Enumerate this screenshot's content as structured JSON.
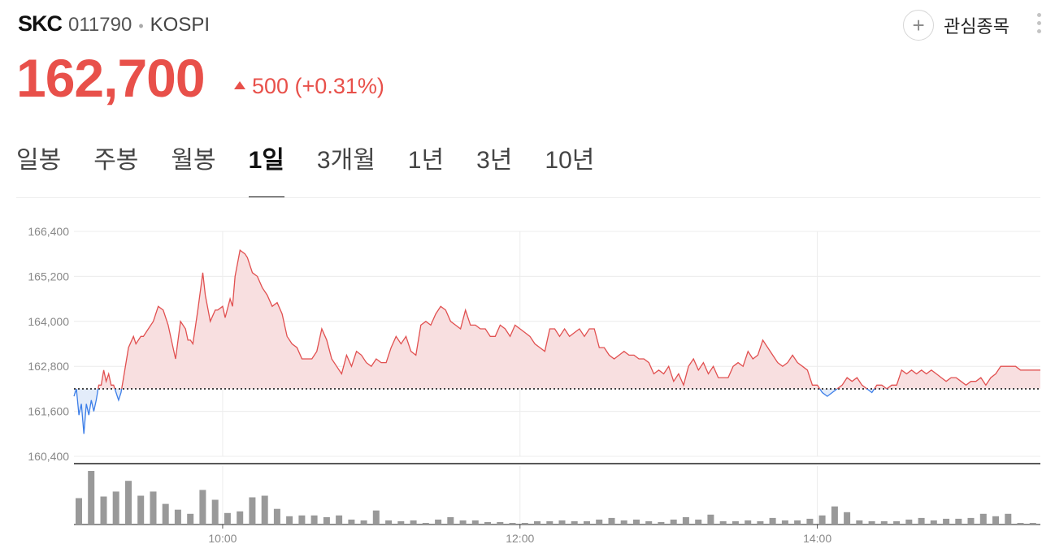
{
  "header": {
    "name": "SKC",
    "code": "011790",
    "separator": "•",
    "market": "KOSPI",
    "watch_label": "관심종목",
    "watch_icon": "plus-icon",
    "menu_icon": "more-vertical-icon"
  },
  "quote": {
    "price": "162,700",
    "change": "500 (+0.31%)",
    "direction": "up",
    "color_up": "#e8504a",
    "color_down": "#3a7ee6"
  },
  "tabs": [
    {
      "label": "일봉",
      "active": false
    },
    {
      "label": "주봉",
      "active": false
    },
    {
      "label": "월봉",
      "active": false
    },
    {
      "label": "1일",
      "active": true
    },
    {
      "label": "3개월",
      "active": false
    },
    {
      "label": "1년",
      "active": false
    },
    {
      "label": "3년",
      "active": false
    },
    {
      "label": "10년",
      "active": false
    }
  ],
  "chart_data": {
    "type": "area",
    "time_start": "09:00",
    "time_end": "15:30",
    "ylim": [
      160400,
      166400
    ],
    "y_ticks": [
      160400,
      161600,
      162800,
      164000,
      165200,
      166400
    ],
    "y_tick_labels": [
      "160,400",
      "161,600",
      "162,800",
      "164,000",
      "165,200",
      "166,400"
    ],
    "x_ticks": [
      "10:00",
      "12:00",
      "14:00"
    ],
    "previous_close": 162200,
    "grid": true,
    "price_points": [
      [
        "09:00",
        162000
      ],
      [
        "09:01",
        162200
      ],
      [
        "09:02",
        161500
      ],
      [
        "09:03",
        161800
      ],
      [
        "09:04",
        161000
      ],
      [
        "09:05",
        161800
      ],
      [
        "09:06",
        161500
      ],
      [
        "09:07",
        161900
      ],
      [
        "09:08",
        161600
      ],
      [
        "09:09",
        161900
      ],
      [
        "09:10",
        162300
      ],
      [
        "09:11",
        162300
      ],
      [
        "09:12",
        162700
      ],
      [
        "09:13",
        162400
      ],
      [
        "09:14",
        162600
      ],
      [
        "09:15",
        162300
      ],
      [
        "09:16",
        162300
      ],
      [
        "09:17",
        162100
      ],
      [
        "09:18",
        161900
      ],
      [
        "09:19",
        162100
      ],
      [
        "09:20",
        162500
      ],
      [
        "09:22",
        163300
      ],
      [
        "09:24",
        163600
      ],
      [
        "09:25",
        163400
      ],
      [
        "09:27",
        163600
      ],
      [
        "09:28",
        163600
      ],
      [
        "09:30",
        163800
      ],
      [
        "09:32",
        164000
      ],
      [
        "09:34",
        164400
      ],
      [
        "09:36",
        164300
      ],
      [
        "09:38",
        163900
      ],
      [
        "09:40",
        163300
      ],
      [
        "09:41",
        163000
      ],
      [
        "09:43",
        164000
      ],
      [
        "09:45",
        163800
      ],
      [
        "09:46",
        163500
      ],
      [
        "09:47",
        163500
      ],
      [
        "09:48",
        163400
      ],
      [
        "09:50",
        164300
      ],
      [
        "09:52",
        165300
      ],
      [
        "09:53",
        164700
      ],
      [
        "09:55",
        164000
      ],
      [
        "09:57",
        164300
      ],
      [
        "09:58",
        164300
      ],
      [
        "10:00",
        164400
      ],
      [
        "10:01",
        164100
      ],
      [
        "10:03",
        164600
      ],
      [
        "10:04",
        164400
      ],
      [
        "10:05",
        165200
      ],
      [
        "10:07",
        165900
      ],
      [
        "10:09",
        165800
      ],
      [
        "10:10",
        165700
      ],
      [
        "10:12",
        165300
      ],
      [
        "10:14",
        165200
      ],
      [
        "10:16",
        164900
      ],
      [
        "10:18",
        164700
      ],
      [
        "10:20",
        164400
      ],
      [
        "10:22",
        164500
      ],
      [
        "10:24",
        164200
      ],
      [
        "10:26",
        163600
      ],
      [
        "10:28",
        163400
      ],
      [
        "10:30",
        163300
      ],
      [
        "10:32",
        163000
      ],
      [
        "10:34",
        163000
      ],
      [
        "10:36",
        163000
      ],
      [
        "10:38",
        163200
      ],
      [
        "10:40",
        163800
      ],
      [
        "10:42",
        163500
      ],
      [
        "10:44",
        163000
      ],
      [
        "10:46",
        162800
      ],
      [
        "10:48",
        162600
      ],
      [
        "10:50",
        163100
      ],
      [
        "10:52",
        162800
      ],
      [
        "10:54",
        163200
      ],
      [
        "10:56",
        163100
      ],
      [
        "10:58",
        162900
      ],
      [
        "11:00",
        162800
      ],
      [
        "11:02",
        163000
      ],
      [
        "11:04",
        162900
      ],
      [
        "11:06",
        162900
      ],
      [
        "11:08",
        163300
      ],
      [
        "11:10",
        163600
      ],
      [
        "11:12",
        163400
      ],
      [
        "11:14",
        163600
      ],
      [
        "11:16",
        163200
      ],
      [
        "11:18",
        163100
      ],
      [
        "11:20",
        163900
      ],
      [
        "11:22",
        164000
      ],
      [
        "11:24",
        163900
      ],
      [
        "11:26",
        164200
      ],
      [
        "11:28",
        164400
      ],
      [
        "11:30",
        164300
      ],
      [
        "11:32",
        164000
      ],
      [
        "11:34",
        163900
      ],
      [
        "11:36",
        163800
      ],
      [
        "11:38",
        164300
      ],
      [
        "11:40",
        163900
      ],
      [
        "11:42",
        163900
      ],
      [
        "11:44",
        163800
      ],
      [
        "11:46",
        163800
      ],
      [
        "11:48",
        163600
      ],
      [
        "11:50",
        163600
      ],
      [
        "11:52",
        163900
      ],
      [
        "11:54",
        163800
      ],
      [
        "11:56",
        163600
      ],
      [
        "11:58",
        163900
      ],
      [
        "12:00",
        163800
      ],
      [
        "12:02",
        163700
      ],
      [
        "12:04",
        163600
      ],
      [
        "12:06",
        163400
      ],
      [
        "12:08",
        163300
      ],
      [
        "12:10",
        163200
      ],
      [
        "12:12",
        163800
      ],
      [
        "12:14",
        163800
      ],
      [
        "12:16",
        163600
      ],
      [
        "12:18",
        163800
      ],
      [
        "12:20",
        163600
      ],
      [
        "12:22",
        163700
      ],
      [
        "12:24",
        163800
      ],
      [
        "12:26",
        163600
      ],
      [
        "12:28",
        163800
      ],
      [
        "12:30",
        163800
      ],
      [
        "12:32",
        163300
      ],
      [
        "12:34",
        163300
      ],
      [
        "12:36",
        163100
      ],
      [
        "12:38",
        163000
      ],
      [
        "12:40",
        163100
      ],
      [
        "12:42",
        163200
      ],
      [
        "12:44",
        163100
      ],
      [
        "12:46",
        163100
      ],
      [
        "12:48",
        163000
      ],
      [
        "12:50",
        163000
      ],
      [
        "12:52",
        162900
      ],
      [
        "12:54",
        162600
      ],
      [
        "12:56",
        162700
      ],
      [
        "12:58",
        162600
      ],
      [
        "13:00",
        162800
      ],
      [
        "13:02",
        162400
      ],
      [
        "13:04",
        162600
      ],
      [
        "13:06",
        162300
      ],
      [
        "13:08",
        162800
      ],
      [
        "13:10",
        163000
      ],
      [
        "13:12",
        162700
      ],
      [
        "13:14",
        162900
      ],
      [
        "13:16",
        162600
      ],
      [
        "13:18",
        162800
      ],
      [
        "13:20",
        162500
      ],
      [
        "13:22",
        162500
      ],
      [
        "13:24",
        162500
      ],
      [
        "13:26",
        162800
      ],
      [
        "13:28",
        162900
      ],
      [
        "13:30",
        162800
      ],
      [
        "13:32",
        163200
      ],
      [
        "13:34",
        163000
      ],
      [
        "13:36",
        163100
      ],
      [
        "13:38",
        163500
      ],
      [
        "13:40",
        163300
      ],
      [
        "13:42",
        163100
      ],
      [
        "13:44",
        162900
      ],
      [
        "13:46",
        162800
      ],
      [
        "13:48",
        162900
      ],
      [
        "13:50",
        163100
      ],
      [
        "13:52",
        162900
      ],
      [
        "13:54",
        162800
      ],
      [
        "13:56",
        162700
      ],
      [
        "13:58",
        162300
      ],
      [
        "14:00",
        162300
      ],
      [
        "14:02",
        162100
      ],
      [
        "14:04",
        162000
      ],
      [
        "14:06",
        162100
      ],
      [
        "14:08",
        162200
      ],
      [
        "14:10",
        162300
      ],
      [
        "14:12",
        162500
      ],
      [
        "14:14",
        162400
      ],
      [
        "14:16",
        162500
      ],
      [
        "14:18",
        162300
      ],
      [
        "14:20",
        162200
      ],
      [
        "14:22",
        162100
      ],
      [
        "14:24",
        162300
      ],
      [
        "14:26",
        162300
      ],
      [
        "14:28",
        162200
      ],
      [
        "14:30",
        162300
      ],
      [
        "14:32",
        162300
      ],
      [
        "14:34",
        162700
      ],
      [
        "14:36",
        162600
      ],
      [
        "14:38",
        162700
      ],
      [
        "14:40",
        162600
      ],
      [
        "14:42",
        162700
      ],
      [
        "14:44",
        162600
      ],
      [
        "14:46",
        162700
      ],
      [
        "14:48",
        162600
      ],
      [
        "14:50",
        162500
      ],
      [
        "14:52",
        162400
      ],
      [
        "14:54",
        162500
      ],
      [
        "14:56",
        162500
      ],
      [
        "14:58",
        162400
      ],
      [
        "15:00",
        162300
      ],
      [
        "15:02",
        162400
      ],
      [
        "15:04",
        162400
      ],
      [
        "15:06",
        162500
      ],
      [
        "15:08",
        162300
      ],
      [
        "15:10",
        162500
      ],
      [
        "15:12",
        162600
      ],
      [
        "15:14",
        162800
      ],
      [
        "15:16",
        162800
      ],
      [
        "15:18",
        162800
      ],
      [
        "15:20",
        162800
      ],
      [
        "15:22",
        162700
      ],
      [
        "15:30",
        162700
      ]
    ],
    "volume": [
      {
        "time": "09:00",
        "value": 32
      },
      {
        "time": "09:05",
        "value": 65
      },
      {
        "time": "09:10",
        "value": 34
      },
      {
        "time": "09:15",
        "value": 40
      },
      {
        "time": "09:20",
        "value": 53
      },
      {
        "time": "09:25",
        "value": 35
      },
      {
        "time": "09:30",
        "value": 40
      },
      {
        "time": "09:35",
        "value": 25
      },
      {
        "time": "09:40",
        "value": 18
      },
      {
        "time": "09:45",
        "value": 13
      },
      {
        "time": "09:50",
        "value": 42
      },
      {
        "time": "09:55",
        "value": 30
      },
      {
        "time": "10:00",
        "value": 14
      },
      {
        "time": "10:05",
        "value": 16
      },
      {
        "time": "10:10",
        "value": 33
      },
      {
        "time": "10:15",
        "value": 35
      },
      {
        "time": "10:20",
        "value": 19
      },
      {
        "time": "10:25",
        "value": 10
      },
      {
        "time": "10:30",
        "value": 11
      },
      {
        "time": "10:35",
        "value": 11
      },
      {
        "time": "10:40",
        "value": 9
      },
      {
        "time": "10:45",
        "value": 11
      },
      {
        "time": "10:50",
        "value": 6
      },
      {
        "time": "10:55",
        "value": 5
      },
      {
        "time": "11:00",
        "value": 17
      },
      {
        "time": "11:05",
        "value": 5
      },
      {
        "time": "11:10",
        "value": 4
      },
      {
        "time": "11:15",
        "value": 5
      },
      {
        "time": "11:20",
        "value": 2
      },
      {
        "time": "11:25",
        "value": 6
      },
      {
        "time": "11:30",
        "value": 9
      },
      {
        "time": "11:35",
        "value": 5
      },
      {
        "time": "11:40",
        "value": 5
      },
      {
        "time": "11:45",
        "value": 3
      },
      {
        "time": "11:50",
        "value": 3
      },
      {
        "time": "11:55",
        "value": 2
      },
      {
        "time": "12:00",
        "value": 2
      },
      {
        "time": "12:05",
        "value": 4
      },
      {
        "time": "12:10",
        "value": 4
      },
      {
        "time": "12:15",
        "value": 5
      },
      {
        "time": "12:20",
        "value": 4
      },
      {
        "time": "12:25",
        "value": 4
      },
      {
        "time": "12:30",
        "value": 6
      },
      {
        "time": "12:35",
        "value": 8
      },
      {
        "time": "12:40",
        "value": 5
      },
      {
        "time": "12:45",
        "value": 6
      },
      {
        "time": "12:50",
        "value": 4
      },
      {
        "time": "12:55",
        "value": 3
      },
      {
        "time": "13:00",
        "value": 6
      },
      {
        "time": "13:05",
        "value": 9
      },
      {
        "time": "13:10",
        "value": 6
      },
      {
        "time": "13:15",
        "value": 12
      },
      {
        "time": "13:20",
        "value": 4
      },
      {
        "time": "13:25",
        "value": 4
      },
      {
        "time": "13:30",
        "value": 5
      },
      {
        "time": "13:35",
        "value": 4
      },
      {
        "time": "13:40",
        "value": 8
      },
      {
        "time": "13:45",
        "value": 5
      },
      {
        "time": "13:50",
        "value": 5
      },
      {
        "time": "13:55",
        "value": 7
      },
      {
        "time": "14:00",
        "value": 11
      },
      {
        "time": "14:05",
        "value": 22
      },
      {
        "time": "14:10",
        "value": 15
      },
      {
        "time": "14:15",
        "value": 5
      },
      {
        "time": "14:20",
        "value": 4
      },
      {
        "time": "14:25",
        "value": 4
      },
      {
        "time": "14:30",
        "value": 4
      },
      {
        "time": "14:35",
        "value": 6
      },
      {
        "time": "14:40",
        "value": 8
      },
      {
        "time": "14:45",
        "value": 5
      },
      {
        "time": "14:50",
        "value": 7
      },
      {
        "time": "14:55",
        "value": 7
      },
      {
        "time": "15:00",
        "value": 8
      },
      {
        "time": "15:05",
        "value": 13
      },
      {
        "time": "15:10",
        "value": 10
      },
      {
        "time": "15:15",
        "value": 13
      },
      {
        "time": "15:20",
        "value": 2
      },
      {
        "time": "15:25",
        "value": 2
      }
    ],
    "colors": {
      "up_line": "#e15050",
      "up_fill": "#f8dfe0",
      "down_line": "#3c7ee8",
      "down_fill": "#e3ecfa",
      "volume_bar": "#999999",
      "grid": "#ececec",
      "tick_text": "#888888"
    }
  }
}
